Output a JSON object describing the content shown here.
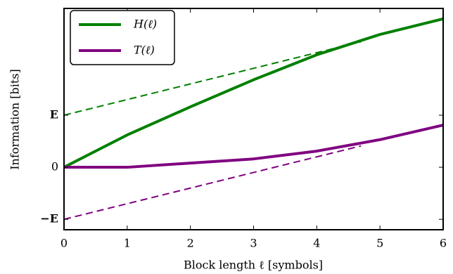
{
  "chart_data": {
    "type": "line",
    "x_label": "Block length ℓ [symbols]",
    "y_label": "Information [bits]",
    "x": [
      0,
      1,
      2,
      3,
      4,
      5,
      6
    ],
    "series": [
      {
        "name": "H(ℓ)",
        "color": "#008000",
        "values": [
          0,
          0.62,
          1.16,
          1.68,
          2.16,
          2.55,
          2.85
        ]
      },
      {
        "name": "T(ℓ)",
        "color": "#800080",
        "values": [
          0,
          0,
          0.08,
          0.16,
          0.31,
          0.53,
          0.81
        ]
      },
      {
        "color": "#008000",
        "style": "dashed",
        "x": [
          0,
          4.7
        ],
        "values": [
          1,
          2.41
        ]
      },
      {
        "color": "#800080",
        "style": "dashed",
        "x": [
          0,
          4.7
        ],
        "values": [
          -1,
          0.41
        ]
      }
    ],
    "xlim": [
      0,
      6
    ],
    "xticks": [
      0,
      1,
      2,
      3,
      4,
      5,
      6
    ],
    "ylim": [
      -1.2,
      3.05
    ],
    "yticks": [
      {
        "value": -1,
        "label": "−E"
      },
      0,
      {
        "value": 1,
        "label": "E"
      }
    ],
    "legend": "upper-left"
  }
}
